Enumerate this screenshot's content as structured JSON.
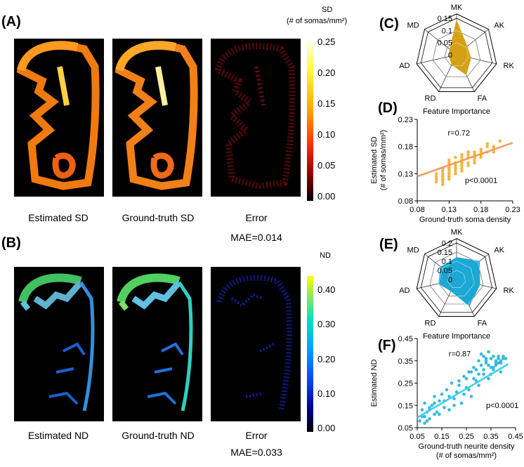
{
  "panel_a": {
    "label": "(A)",
    "captions": [
      "Estimated SD",
      "Ground-truth SD",
      "Error"
    ],
    "mae": "MAE=0.014",
    "colorbar": {
      "title": "SD",
      "subtitle": "(# of somas/mm²)",
      "ticks": [
        "0.25",
        "0.20",
        "0.15",
        "0.10",
        "0.05",
        "0.00"
      ],
      "colors": [
        "#ffffff",
        "#ffff00",
        "#ffa000",
        "#ff4000",
        "#b00000",
        "#000000"
      ]
    }
  },
  "panel_b": {
    "label": "(B)",
    "captions": [
      "Estimated ND",
      "Ground-truth ND",
      "Error"
    ],
    "mae": "MAE=0.033",
    "colorbar": {
      "title": "ND",
      "ticks": [
        "0.40",
        "0.30",
        "0.20",
        "0.10",
        "0.00"
      ],
      "colors": [
        "#ffff00",
        "#00e0a0",
        "#00a0ff",
        "#0040ff",
        "#000060",
        "#000000"
      ]
    }
  },
  "chart_data": [
    {
      "panel": "(C)",
      "type": "radar",
      "title": "Feature Importance",
      "axes": [
        "MK",
        "AK",
        "RK",
        "FA",
        "RD",
        "AD",
        "MD"
      ],
      "rings": [
        0,
        0.05,
        0.1,
        0.15
      ],
      "ring_labels": [
        "0",
        "0.05",
        "0.1",
        "0.15"
      ],
      "values": [
        0.14,
        0.055,
        0.06,
        0.09,
        0.045,
        0.03,
        0.035
      ],
      "color": "#d4a016"
    },
    {
      "panel": "(D)",
      "type": "scatter",
      "xlabel": "Ground-truth soma density",
      "ylabel": "Estimated SD",
      "ylabel2": "(# of somas/mm²)",
      "xlim": [
        0.08,
        0.23
      ],
      "ylim": [
        0.08,
        0.23
      ],
      "xticks": [
        "0.08",
        "0.13",
        "0.18",
        "0.23"
      ],
      "yticks": [
        "0.08",
        "0.13",
        "0.18",
        "0.23"
      ],
      "r_label": "r=0.72",
      "p_label": "p<0.0001",
      "fit": {
        "x": [
          0.08,
          0.23
        ],
        "y": [
          0.125,
          0.187
        ]
      },
      "point_color": "#f2b640",
      "line_color": "#f29a5a",
      "points_x": [
        0.12,
        0.13,
        0.14,
        0.12,
        0.13,
        0.15,
        0.16,
        0.11,
        0.12,
        0.14,
        0.13,
        0.15,
        0.17,
        0.18,
        0.16,
        0.12,
        0.11,
        0.13,
        0.14,
        0.12,
        0.15,
        0.16,
        0.19,
        0.2,
        0.18,
        0.17,
        0.14,
        0.13,
        0.12,
        0.11,
        0.13,
        0.15,
        0.14,
        0.16,
        0.17,
        0.12,
        0.13,
        0.14,
        0.15,
        0.18,
        0.19,
        0.21,
        0.2,
        0.16,
        0.15,
        0.13,
        0.12,
        0.14,
        0.11,
        0.12,
        0.13,
        0.17,
        0.18,
        0.14,
        0.15,
        0.13,
        0.12,
        0.16,
        0.19,
        0.2,
        0.12,
        0.13,
        0.14,
        0.13,
        0.11,
        0.12,
        0.15,
        0.16,
        0.17,
        0.14
      ],
      "points_y": [
        0.13,
        0.14,
        0.15,
        0.12,
        0.13,
        0.15,
        0.16,
        0.12,
        0.13,
        0.14,
        0.135,
        0.145,
        0.16,
        0.17,
        0.17,
        0.125,
        0.12,
        0.14,
        0.15,
        0.13,
        0.16,
        0.15,
        0.17,
        0.18,
        0.175,
        0.165,
        0.14,
        0.145,
        0.14,
        0.13,
        0.125,
        0.155,
        0.135,
        0.16,
        0.15,
        0.12,
        0.13,
        0.16,
        0.14,
        0.165,
        0.18,
        0.19,
        0.175,
        0.145,
        0.165,
        0.12,
        0.115,
        0.13,
        0.125,
        0.14,
        0.155,
        0.17,
        0.16,
        0.145,
        0.135,
        0.13,
        0.12,
        0.165,
        0.185,
        0.17,
        0.11,
        0.15,
        0.14,
        0.125,
        0.115,
        0.135,
        0.15,
        0.17,
        0.155,
        0.13
      ]
    },
    {
      "panel": "(E)",
      "type": "radar",
      "title": "Feature Importance",
      "axes": [
        "MK",
        "AK",
        "RK",
        "FA",
        "RD",
        "AD",
        "MD"
      ],
      "rings": [
        0,
        0.05,
        0.1,
        0.15,
        0.2
      ],
      "ring_labels": [
        "0",
        "0.05",
        "0.1",
        "0.15",
        "0.2"
      ],
      "values": [
        0.12,
        0.16,
        0.13,
        0.16,
        0.07,
        0.1,
        0.11
      ],
      "color": "#1ca8d4"
    },
    {
      "panel": "(F)",
      "type": "scatter",
      "xlabel": "Ground-truth neurite density",
      "xlabel2": "(# of somas/mm²)",
      "ylabel": "Estimated ND",
      "xlim": [
        0.05,
        0.45
      ],
      "ylim": [
        0.05,
        0.45
      ],
      "xticks": [
        "0.05",
        "0.15",
        "0.25",
        "0.35",
        "0.45"
      ],
      "yticks": [
        "0.05",
        "0.15",
        "0.25",
        "0.35",
        "0.45"
      ],
      "r_label": "r=0.87",
      "p_label": "p<0.0001",
      "fit": {
        "x": [
          0.05,
          0.42
        ],
        "y": [
          0.095,
          0.335
        ]
      },
      "point_color": "#35b9e0",
      "line_color": "#40d0ec",
      "points_x": [
        0.06,
        0.07,
        0.08,
        0.09,
        0.1,
        0.11,
        0.12,
        0.07,
        0.08,
        0.09,
        0.1,
        0.12,
        0.13,
        0.14,
        0.15,
        0.16,
        0.17,
        0.18,
        0.19,
        0.2,
        0.21,
        0.22,
        0.23,
        0.24,
        0.25,
        0.26,
        0.27,
        0.28,
        0.29,
        0.3,
        0.31,
        0.32,
        0.33,
        0.34,
        0.35,
        0.36,
        0.37,
        0.38,
        0.39,
        0.4,
        0.3,
        0.31,
        0.32,
        0.33,
        0.34,
        0.35,
        0.36,
        0.37,
        0.38,
        0.39,
        0.28,
        0.29,
        0.3,
        0.32,
        0.34,
        0.36,
        0.38,
        0.4,
        0.27,
        0.26,
        0.25,
        0.24,
        0.22,
        0.2,
        0.18,
        0.16,
        0.14,
        0.12,
        0.1,
        0.08,
        0.33,
        0.35,
        0.37,
        0.39,
        0.41
      ],
      "points_y": [
        0.08,
        0.1,
        0.07,
        0.12,
        0.09,
        0.15,
        0.11,
        0.13,
        0.16,
        0.08,
        0.14,
        0.19,
        0.12,
        0.17,
        0.2,
        0.14,
        0.22,
        0.13,
        0.25,
        0.18,
        0.21,
        0.26,
        0.16,
        0.28,
        0.23,
        0.3,
        0.19,
        0.27,
        0.31,
        0.24,
        0.33,
        0.29,
        0.35,
        0.27,
        0.36,
        0.32,
        0.34,
        0.37,
        0.3,
        0.36,
        0.35,
        0.38,
        0.31,
        0.34,
        0.39,
        0.29,
        0.37,
        0.33,
        0.36,
        0.35,
        0.32,
        0.26,
        0.29,
        0.37,
        0.33,
        0.31,
        0.34,
        0.37,
        0.3,
        0.22,
        0.27,
        0.2,
        0.24,
        0.15,
        0.19,
        0.17,
        0.11,
        0.16,
        0.13,
        0.1,
        0.36,
        0.32,
        0.35,
        0.34,
        0.36
      ]
    }
  ]
}
